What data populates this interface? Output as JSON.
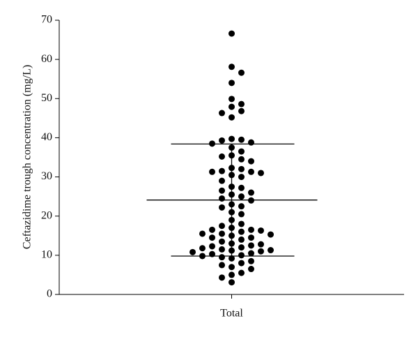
{
  "chart_data": {
    "type": "scatter",
    "y_label": "Ceftazidime trough concentration (mg/L)",
    "categories": [
      "Total"
    ],
    "values": [
      66.6,
      58.1,
      56.6,
      54,
      49.9,
      48.6,
      47.9,
      46.8,
      46.3,
      45.2,
      39.7,
      39.5,
      39.3,
      38.8,
      38.5,
      37.5,
      36.5,
      35.5,
      35.2,
      34.5,
      34,
      32.3,
      32,
      31.5,
      31.3,
      31.3,
      31,
      30.5,
      30,
      29,
      27.5,
      27.2,
      26.5,
      26,
      25.5,
      25,
      24.5,
      24,
      23,
      22.5,
      22.2,
      21,
      20.5,
      19,
      18,
      17.5,
      17,
      16.5,
      16.5,
      16.3,
      16,
      15.5,
      15.5,
      15.3,
      15,
      14.5,
      14.5,
      14,
      13.5,
      13,
      12.8,
      12.5,
      12.3,
      12,
      11.8,
      11.5,
      11.3,
      11.2,
      11,
      10.8,
      10.5,
      10.3,
      10,
      9.8,
      9.5,
      9.2,
      8.5,
      8,
      7.5,
      7,
      6.5,
      5.5,
      5,
      4.3,
      3.1
    ],
    "color": "#000000",
    "mean": 24.1,
    "upper": 38.4,
    "lower": 9.8,
    "ylim": [
      0,
      70
    ],
    "yticks": [
      0,
      10,
      20,
      30,
      40,
      50,
      60,
      70
    ]
  }
}
